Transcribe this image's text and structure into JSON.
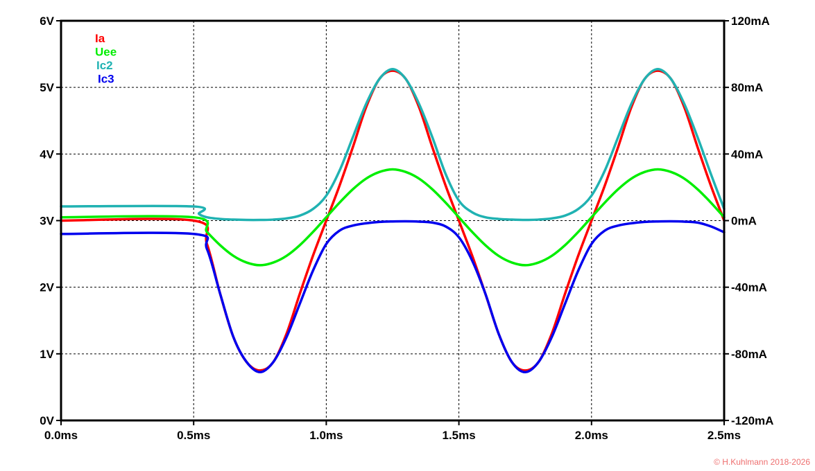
{
  "chart_data": {
    "type": "line",
    "title": "",
    "xlabel": "",
    "ylabel": "",
    "xlim": [
      0,
      2.5
    ],
    "ylim_left": [
      0,
      6
    ],
    "ylim_right": [
      -120,
      120
    ],
    "x_ticks": [
      0,
      0.5,
      1.0,
      1.5,
      2.0,
      2.5
    ],
    "x_tick_labels": [
      "0.0ms",
      "0.5ms",
      "1.0ms",
      "1.5ms",
      "2.0ms",
      "2.5ms"
    ],
    "y_left_ticks": [
      0,
      1,
      2,
      3,
      4,
      5,
      6
    ],
    "y_left_tick_labels": [
      "0V",
      "1V",
      "2V",
      "3V",
      "4V",
      "5V",
      "6V"
    ],
    "y_right_ticks": [
      -120,
      -80,
      -40,
      0,
      40,
      80,
      120
    ],
    "y_right_tick_labels": [
      "-120mA",
      "-80mA",
      "-40mA",
      "0mA",
      "40mA",
      "80mA",
      "120mA"
    ],
    "grid": true,
    "legend_position": "top-left",
    "series": [
      {
        "name": "Ia",
        "color": "#ff0000",
        "axis": "right",
        "x": [
          0,
          0.5,
          0.55,
          0.6,
          0.65,
          0.7,
          0.75,
          0.8,
          0.85,
          0.9,
          0.95,
          1.0,
          1.05,
          1.1,
          1.15,
          1.2,
          1.25,
          1.3,
          1.35,
          1.4,
          1.45,
          1.5,
          1.55,
          1.6,
          1.65,
          1.7,
          1.75,
          1.8,
          1.85,
          1.9,
          1.95,
          2.0,
          2.05,
          2.1,
          2.15,
          2.2,
          2.25,
          2.3,
          2.35,
          2.4,
          2.45,
          2.5
        ],
        "y": [
          0,
          0,
          -14,
          -44,
          -70,
          -85,
          -90,
          -85,
          -68,
          -44,
          -21,
          0,
          21,
          44,
          68,
          85,
          90,
          85,
          68,
          44,
          21,
          0,
          -21,
          -44,
          -68,
          -85,
          -90,
          -85,
          -68,
          -44,
          -21,
          0,
          21,
          44,
          68,
          85,
          90,
          85,
          68,
          44,
          21,
          0
        ]
      },
      {
        "name": "Uee",
        "color": "#00ee00",
        "axis": "left",
        "x": [
          0,
          0.5,
          0.55,
          0.6,
          0.65,
          0.7,
          0.75,
          0.8,
          0.85,
          0.9,
          0.95,
          1.0,
          1.05,
          1.1,
          1.15,
          1.2,
          1.25,
          1.3,
          1.35,
          1.4,
          1.45,
          1.5,
          1.55,
          1.6,
          1.65,
          1.7,
          1.75,
          1.8,
          1.85,
          1.9,
          1.95,
          2.0,
          2.05,
          2.1,
          2.15,
          2.2,
          2.25,
          2.3,
          2.35,
          2.4,
          2.45,
          2.5
        ],
        "y": [
          3.05,
          3.05,
          2.83,
          2.63,
          2.47,
          2.37,
          2.33,
          2.37,
          2.47,
          2.63,
          2.83,
          3.05,
          3.27,
          3.47,
          3.63,
          3.73,
          3.77,
          3.73,
          3.63,
          3.47,
          3.27,
          3.05,
          2.83,
          2.63,
          2.47,
          2.37,
          2.33,
          2.37,
          2.47,
          2.63,
          2.83,
          3.05,
          3.27,
          3.47,
          3.63,
          3.73,
          3.77,
          3.73,
          3.63,
          3.47,
          3.27,
          3.05
        ]
      },
      {
        "name": "Ic2",
        "color": "#20b2b2",
        "axis": "right",
        "x": [
          0,
          0.5,
          0.52,
          0.55,
          0.6,
          0.65,
          0.7,
          0.75,
          0.8,
          0.85,
          0.9,
          0.95,
          1.0,
          1.05,
          1.1,
          1.15,
          1.2,
          1.25,
          1.3,
          1.35,
          1.4,
          1.45,
          1.5,
          1.55,
          1.6,
          1.65,
          1.7,
          1.75,
          1.8,
          1.85,
          1.9,
          1.95,
          2.0,
          2.05,
          2.1,
          2.15,
          2.2,
          2.25,
          2.3,
          2.35,
          2.4,
          2.45,
          2.5
        ],
        "y": [
          8.5,
          8.5,
          4,
          2,
          1,
          0.6,
          0.4,
          0.4,
          0.6,
          1.3,
          3,
          7,
          15,
          30,
          50,
          70,
          85,
          91,
          85,
          70,
          50,
          28,
          12,
          5,
          2,
          1,
          0.6,
          0.4,
          0.6,
          1.3,
          3,
          7,
          15,
          30,
          50,
          70,
          85,
          91,
          85,
          70,
          50,
          28,
          7
        ]
      },
      {
        "name": "Ic3",
        "color": "#0000ee",
        "axis": "right",
        "x": [
          0,
          0.5,
          0.55,
          0.6,
          0.65,
          0.7,
          0.75,
          0.8,
          0.85,
          0.9,
          0.95,
          1.0,
          1.05,
          1.1,
          1.15,
          1.2,
          1.25,
          1.3,
          1.35,
          1.4,
          1.45,
          1.5,
          1.55,
          1.6,
          1.65,
          1.7,
          1.75,
          1.8,
          1.85,
          1.9,
          1.95,
          2.0,
          2.05,
          2.1,
          2.15,
          2.2,
          2.25,
          2.3,
          2.35,
          2.4,
          2.45,
          2.5
        ],
        "y": [
          -8,
          -8,
          -17,
          -44,
          -70,
          -85,
          -91,
          -85,
          -70,
          -50,
          -30,
          -14,
          -6,
          -3,
          -1.6,
          -0.8,
          -0.5,
          -0.4,
          -0.6,
          -1.2,
          -3.5,
          -10,
          -24,
          -44,
          -68,
          -85,
          -91,
          -85,
          -70,
          -50,
          -30,
          -14,
          -6,
          -3,
          -1.6,
          -0.8,
          -0.5,
          -0.4,
          -0.6,
          -1.2,
          -3.5,
          -7
        ]
      }
    ]
  },
  "copyright": "© H.Kuhlmann 2018-2026"
}
